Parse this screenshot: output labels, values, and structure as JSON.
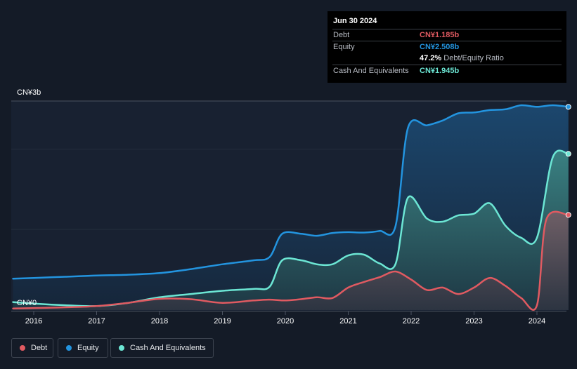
{
  "tooltip": {
    "date": "Jun 30 2024",
    "debt_label": "Debt",
    "debt_value": "CN¥1.185b",
    "equity_label": "Equity",
    "equity_value": "CN¥2.508b",
    "ratio_value": "47.2%",
    "ratio_label": "Debt/Equity Ratio",
    "cash_label": "Cash And Equivalents",
    "cash_value": "CN¥1.945b"
  },
  "legend": {
    "debt": "Debt",
    "equity": "Equity",
    "cash": "Cash And Equivalents"
  },
  "colors": {
    "debt": "#e05a61",
    "equity": "#2394df",
    "cash": "#6ce6d4",
    "background": "#141b27"
  },
  "chart_data": {
    "type": "area",
    "y_tick_labels": [
      "CN¥0",
      "CN¥3b"
    ],
    "ylim": [
      0,
      2.62
    ],
    "x_tick_labels": [
      "2016",
      "2017",
      "2018",
      "2019",
      "2020",
      "2021",
      "2022",
      "2023",
      "2024"
    ],
    "grid": true,
    "legend_position": "bottom-left",
    "series": [
      {
        "name": "Equity",
        "points": [
          [
            2015.67,
            0.39
          ],
          [
            2016.0,
            0.4
          ],
          [
            2016.5,
            0.415
          ],
          [
            2017.0,
            0.43
          ],
          [
            2017.5,
            0.44
          ],
          [
            2018.0,
            0.46
          ],
          [
            2018.5,
            0.51
          ],
          [
            2019.0,
            0.57
          ],
          [
            2019.5,
            0.62
          ],
          [
            2019.75,
            0.66
          ],
          [
            2019.95,
            0.95
          ],
          [
            2020.25,
            0.95
          ],
          [
            2020.5,
            0.925
          ],
          [
            2020.75,
            0.96
          ],
          [
            2021.0,
            0.97
          ],
          [
            2021.25,
            0.965
          ],
          [
            2021.5,
            0.985
          ],
          [
            2021.75,
            1.04
          ],
          [
            2021.95,
            2.27
          ],
          [
            2022.25,
            2.3
          ],
          [
            2022.5,
            2.36
          ],
          [
            2022.75,
            2.45
          ],
          [
            2023.0,
            2.46
          ],
          [
            2023.25,
            2.49
          ],
          [
            2023.5,
            2.5
          ],
          [
            2023.75,
            2.55
          ],
          [
            2024.0,
            2.53
          ],
          [
            2024.25,
            2.55
          ],
          [
            2024.5,
            2.53
          ]
        ]
      },
      {
        "name": "Cash And Equivalents",
        "points": [
          [
            2015.67,
            0.1
          ],
          [
            2016.0,
            0.08
          ],
          [
            2016.5,
            0.06
          ],
          [
            2017.0,
            0.05
          ],
          [
            2017.5,
            0.09
          ],
          [
            2018.0,
            0.16
          ],
          [
            2018.5,
            0.2
          ],
          [
            2019.0,
            0.24
          ],
          [
            2019.5,
            0.265
          ],
          [
            2019.75,
            0.29
          ],
          [
            2019.95,
            0.62
          ],
          [
            2020.25,
            0.62
          ],
          [
            2020.5,
            0.57
          ],
          [
            2020.75,
            0.57
          ],
          [
            2021.0,
            0.68
          ],
          [
            2021.25,
            0.69
          ],
          [
            2021.5,
            0.58
          ],
          [
            2021.75,
            0.57
          ],
          [
            2021.95,
            1.4
          ],
          [
            2022.25,
            1.14
          ],
          [
            2022.5,
            1.1
          ],
          [
            2022.75,
            1.18
          ],
          [
            2023.0,
            1.2
          ],
          [
            2023.25,
            1.33
          ],
          [
            2023.5,
            1.05
          ],
          [
            2023.75,
            0.9
          ],
          [
            2024.0,
            0.9
          ],
          [
            2024.25,
            1.9
          ],
          [
            2024.5,
            1.945
          ]
        ]
      },
      {
        "name": "Debt",
        "points": [
          [
            2015.67,
            0.02
          ],
          [
            2016.0,
            0.025
          ],
          [
            2016.5,
            0.035
          ],
          [
            2017.0,
            0.05
          ],
          [
            2017.5,
            0.09
          ],
          [
            2018.0,
            0.14
          ],
          [
            2018.5,
            0.135
          ],
          [
            2019.0,
            0.09
          ],
          [
            2019.5,
            0.12
          ],
          [
            2019.75,
            0.13
          ],
          [
            2020.0,
            0.12
          ],
          [
            2020.25,
            0.135
          ],
          [
            2020.5,
            0.16
          ],
          [
            2020.75,
            0.15
          ],
          [
            2021.0,
            0.28
          ],
          [
            2021.25,
            0.35
          ],
          [
            2021.5,
            0.41
          ],
          [
            2021.75,
            0.48
          ],
          [
            2022.0,
            0.38
          ],
          [
            2022.25,
            0.25
          ],
          [
            2022.5,
            0.28
          ],
          [
            2022.75,
            0.2
          ],
          [
            2023.0,
            0.28
          ],
          [
            2023.25,
            0.4
          ],
          [
            2023.5,
            0.3
          ],
          [
            2023.75,
            0.15
          ],
          [
            2024.0,
            0.06
          ],
          [
            2024.15,
            1.13
          ],
          [
            2024.5,
            1.185
          ]
        ]
      }
    ]
  }
}
